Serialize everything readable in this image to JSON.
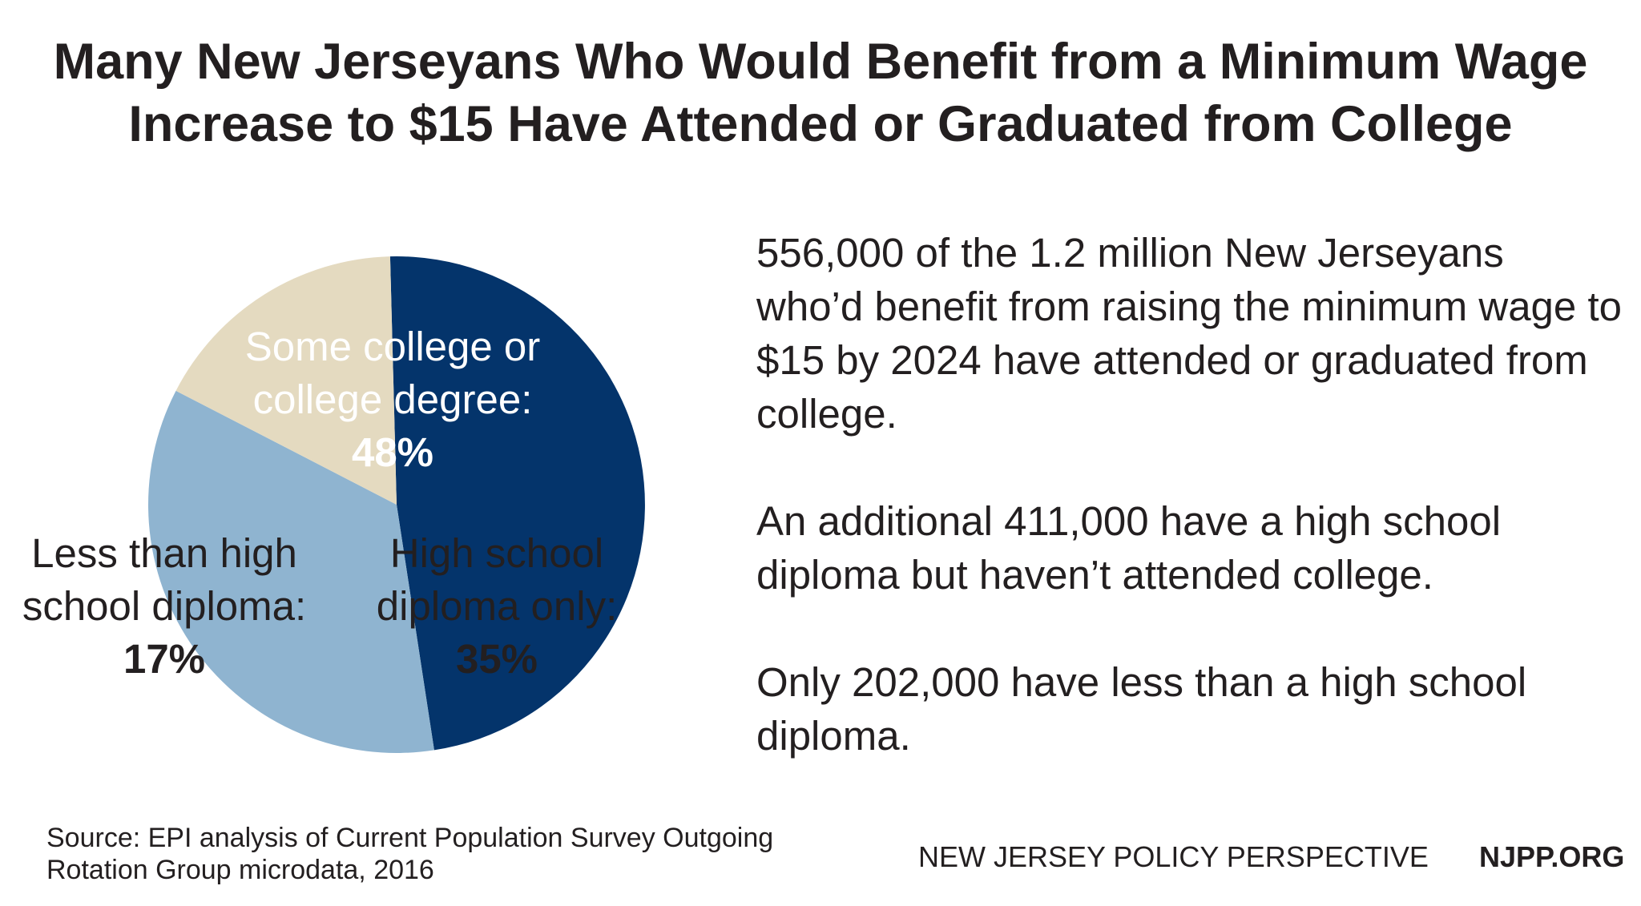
{
  "title": {
    "line1": "Many New Jerseyans Who Would Benefit from a Minimum Wage",
    "line2": "Increase to $15 Have Attended or Graduated from College"
  },
  "chart_data": {
    "type": "pie",
    "slices": [
      {
        "label_line1": "Some college or",
        "label_line2": "college degree:",
        "value": 48,
        "value_label": "48%",
        "color": "#04346b"
      },
      {
        "label_line1": "High school",
        "label_line2": "diploma only:",
        "value": 35,
        "value_label": "35%",
        "color": "#8fb4d0"
      },
      {
        "label_line1": "Less than high",
        "label_line2": "school diploma:",
        "value": 17,
        "value_label": "17%",
        "color": "#e4dac0"
      }
    ],
    "start_angle_deg": 91.5,
    "direction": "clockwise",
    "legend": "none"
  },
  "summary": {
    "p1": "556,000 of the 1.2 million New Jerseyans who’d benefit from raising the minimum wage to $15 by 2024 have attended or graduated from college.",
    "p2": "An additional 411,000 have a high school diploma but haven’t attended college.",
    "p3": "Only 202,000 have less than a high school diploma."
  },
  "footer": {
    "source_line1": "Source: EPI analysis of Current Population Survey Outgoing",
    "source_line2": "Rotation Group microdata, 2016",
    "organization": "NEW JERSEY POLICY PERSPECTIVE",
    "website": "NJPP.ORG"
  },
  "colors": {
    "college": "#04346b",
    "high_school": "#8fb4d0",
    "less_than_hs": "#e4dac0",
    "text": "#231f20"
  }
}
